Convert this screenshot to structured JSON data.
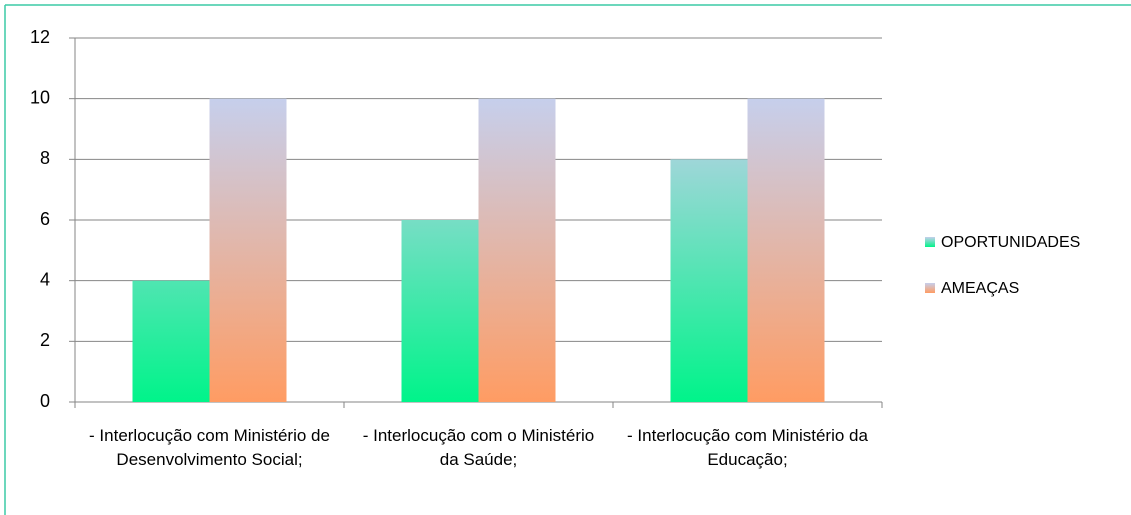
{
  "chart_data": {
    "type": "bar",
    "categories": [
      "- Interlocução com Ministério de Desenvolvimento Social;",
      "- Interlocução com o Ministério da Saúde;",
      "- Interlocução com Ministério da Educação;"
    ],
    "series": [
      {
        "name": "OPORTUNIDADES",
        "color": [
          "#00f48a",
          "#c6cfec"
        ],
        "values": [
          4,
          6,
          8
        ]
      },
      {
        "name": "AMEAÇAS",
        "color": [
          "#ff9c63",
          "#c6cfec"
        ],
        "values": [
          10,
          10,
          10
        ]
      }
    ],
    "ylim": [
      0,
      12
    ],
    "yticks": [
      0,
      2,
      4,
      6,
      8,
      10,
      12
    ],
    "grid": true,
    "legend": "right"
  }
}
